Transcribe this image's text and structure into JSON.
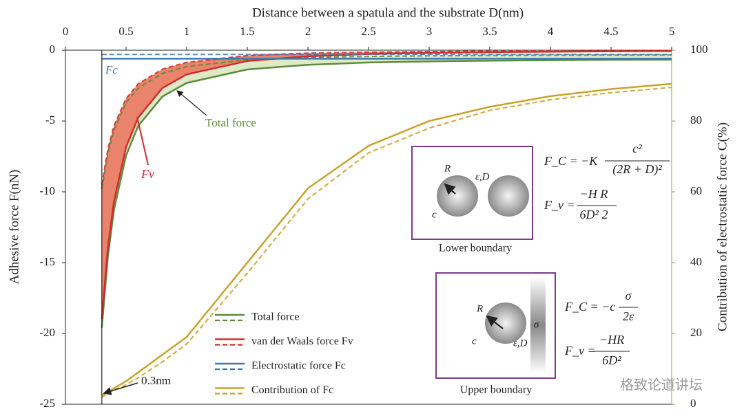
{
  "chart_data": {
    "type": "line",
    "title": "Distance between a spatula and the substrate D(nm)",
    "y_label": "Adhesive force F(nN)",
    "y2_label": "Contribution of electrostatic force  C(%)",
    "xlim": [
      0,
      5
    ],
    "xticks": [
      0,
      0.5,
      1,
      1.5,
      2,
      2.5,
      3,
      3.5,
      4,
      4.5,
      5
    ],
    "ylim": [
      -25,
      0
    ],
    "yticks": [
      -25,
      -20,
      -15,
      -10,
      -5,
      0
    ],
    "y2lim": [
      0,
      100
    ],
    "y2ticks": [
      0,
      20,
      40,
      60,
      80,
      100
    ],
    "x": [
      0.3,
      0.35,
      0.4,
      0.5,
      0.6,
      0.8,
      1,
      1.5,
      2,
      2.5,
      3,
      3.5,
      4,
      4.5,
      5
    ],
    "series": [
      {
        "name": "Total force",
        "color": "#5b8c3a",
        "fill": "#dfe9c8",
        "values": [
          -19.6,
          -14.56,
          -11.29,
          -7.44,
          -5.35,
          -3.27,
          -2.31,
          -1.36,
          -1.03,
          -0.87,
          -0.79,
          -0.74,
          -0.71,
          -0.68,
          -0.67
        ],
        "dashed_values": [
          -9.8,
          -7.28,
          -5.64,
          -3.72,
          -2.68,
          -1.64,
          -1.16,
          -0.68,
          -0.51,
          -0.44,
          -0.4,
          -0.37,
          -0.35,
          -0.34,
          -0.33
        ]
      },
      {
        "name": "van der Waals force Fv",
        "color": "#d42a2a",
        "fill": "#e9836c",
        "values": [
          -19,
          -13.96,
          -10.69,
          -6.84,
          -4.75,
          -2.67,
          -1.71,
          -0.76,
          -0.43,
          -0.27,
          -0.19,
          -0.14,
          -0.11,
          -0.08,
          -0.07
        ],
        "dashed_values": [
          -9.5,
          -6.98,
          -5.34,
          -3.42,
          -2.38,
          -1.34,
          -0.86,
          -0.38,
          -0.21,
          -0.14,
          -0.1,
          -0.07,
          -0.05,
          -0.04,
          -0.03
        ]
      },
      {
        "name": "Electrostatic force Fc",
        "color": "#3a78b5",
        "values": [
          -0.6,
          -0.6,
          -0.6,
          -0.6,
          -0.6,
          -0.6,
          -0.6,
          -0.6,
          -0.6,
          -0.6,
          -0.6,
          -0.6,
          -0.6,
          -0.6,
          -0.6
        ],
        "dashed_values": [
          -0.3,
          -0.3,
          -0.3,
          -0.3,
          -0.3,
          -0.3,
          -0.3,
          -0.3,
          -0.3,
          -0.3,
          -0.3,
          -0.3,
          -0.3,
          -0.3,
          -0.3
        ]
      },
      {
        "name": "Contribution of Fc",
        "color": "#c9a227",
        "axis": "y2",
        "values": [
          2.5,
          3.5,
          4.5,
          6.5,
          9,
          14,
          19,
          40,
          61,
          73,
          80,
          84,
          87,
          89,
          90.5
        ],
        "dashed_values": [
          2,
          3,
          4,
          5.5,
          7.5,
          12,
          17,
          37,
          58,
          71,
          78,
          83,
          86,
          88,
          89.5
        ]
      }
    ],
    "vline": {
      "x": 0.3,
      "label": "0.3nm"
    },
    "annotations": [
      "Fc",
      "Total force",
      "Fv"
    ],
    "insets": [
      {
        "caption": "Lower boundary",
        "labels": [
          "R",
          "ε,D",
          "c"
        ],
        "formulas": [
          {
            "lhs": "F_C = −K",
            "num": "c²",
            "den": "(2R + D)²"
          },
          {
            "lhs": "F_v =",
            "num": "−H   R",
            "den": "6D²  2"
          }
        ]
      },
      {
        "caption": "Upper boundary",
        "labels": [
          "R",
          "c",
          "ε,D",
          "σ"
        ],
        "formulas": [
          {
            "lhs": "F_C = −c",
            "num": "σ",
            "den": "2ε"
          },
          {
            "lhs": "F_v =",
            "num": "−HR",
            "den": "6D²"
          }
        ]
      }
    ],
    "watermark": "格致论道讲坛"
  }
}
